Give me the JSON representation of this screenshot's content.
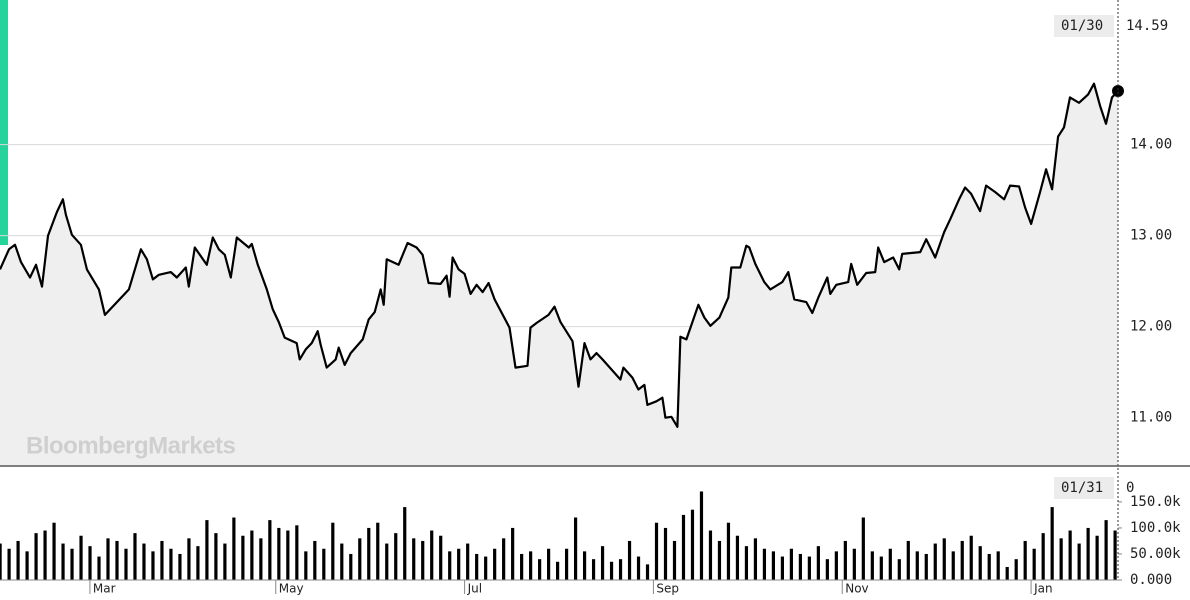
{
  "watermark": "BloombergMarkets",
  "chart_data": [
    {
      "type": "line",
      "color": "#000000",
      "grid": true,
      "xlim": [
        0,
        373
      ],
      "ylim": [
        10.48,
        15.59
      ],
      "yticks": [
        {
          "value": 11,
          "label": "11.00"
        },
        {
          "value": 12,
          "label": "12.00"
        },
        {
          "value": 13,
          "label": "13.00"
        },
        {
          "value": 14,
          "label": "14.00"
        }
      ],
      "last_date": "01/30",
      "last_value": 14.59,
      "x": [
        0,
        3,
        5,
        7,
        10,
        12,
        14,
        16,
        19,
        21,
        22,
        24,
        27,
        29,
        33,
        35,
        43,
        47,
        49,
        51,
        53,
        57,
        59,
        62,
        63,
        65,
        69,
        71,
        73,
        75,
        77,
        79,
        83,
        84,
        86,
        89,
        91,
        93,
        95,
        99,
        100,
        102,
        104,
        106,
        107,
        109,
        112,
        113,
        115,
        117,
        121,
        123,
        125,
        127,
        128,
        129,
        133,
        136,
        139,
        141,
        143,
        147,
        149,
        150,
        151,
        153,
        155,
        157,
        159,
        161,
        163,
        165,
        170,
        172,
        176,
        177,
        179,
        183,
        185,
        187,
        191,
        193,
        195,
        197,
        199,
        201,
        204,
        207,
        208,
        211,
        213,
        215,
        216,
        219,
        221,
        222,
        224,
        226,
        227,
        229,
        233,
        235,
        237,
        240,
        243,
        244,
        247,
        249,
        250,
        252,
        255,
        257,
        261,
        263,
        265,
        269,
        271,
        273,
        276,
        277,
        279,
        283,
        284,
        286,
        289,
        292,
        293,
        295,
        298,
        300,
        301,
        307,
        309,
        312,
        315,
        317,
        320,
        322,
        324,
        327,
        329,
        332,
        335,
        337,
        340,
        342,
        344,
        347,
        349,
        351,
        353,
        355,
        357,
        360,
        363,
        365,
        367,
        369,
        371,
        373
      ],
      "values": [
        12.63,
        12.85,
        12.9,
        12.71,
        12.54,
        12.68,
        12.44,
        13.0,
        13.26,
        13.4,
        13.23,
        13.01,
        12.9,
        12.63,
        12.41,
        12.13,
        12.41,
        12.85,
        12.74,
        12.52,
        12.57,
        12.6,
        12.54,
        12.65,
        12.44,
        12.87,
        12.68,
        12.98,
        12.85,
        12.79,
        12.54,
        12.98,
        12.87,
        12.91,
        12.68,
        12.41,
        12.19,
        12.05,
        11.88,
        11.82,
        11.64,
        11.75,
        11.82,
        11.95,
        11.8,
        11.55,
        11.64,
        11.77,
        11.58,
        11.71,
        11.86,
        12.08,
        12.16,
        12.41,
        12.24,
        12.74,
        12.68,
        12.92,
        12.87,
        12.79,
        12.48,
        12.47,
        12.56,
        12.33,
        12.76,
        12.63,
        12.58,
        12.36,
        12.46,
        12.38,
        12.48,
        12.3,
        11.99,
        11.55,
        11.57,
        11.99,
        12.04,
        12.13,
        12.22,
        12.05,
        11.84,
        11.34,
        11.82,
        11.64,
        11.71,
        11.64,
        11.53,
        11.42,
        11.55,
        11.44,
        11.31,
        11.36,
        11.14,
        11.18,
        11.22,
        11.0,
        11.01,
        10.9,
        11.89,
        11.86,
        12.24,
        12.1,
        12.01,
        12.1,
        12.32,
        12.65,
        12.65,
        12.89,
        12.87,
        12.69,
        12.49,
        12.41,
        12.49,
        12.6,
        12.3,
        12.27,
        12.15,
        12.32,
        12.54,
        12.36,
        12.46,
        12.49,
        12.69,
        12.46,
        12.59,
        12.6,
        12.87,
        12.71,
        12.76,
        12.63,
        12.8,
        12.82,
        12.96,
        12.76,
        13.04,
        13.18,
        13.4,
        13.53,
        13.46,
        13.27,
        13.55,
        13.48,
        13.4,
        13.55,
        13.54,
        13.31,
        13.13,
        13.48,
        13.73,
        13.51,
        14.09,
        14.19,
        14.52,
        14.46,
        14.55,
        14.67,
        14.43,
        14.23,
        14.52,
        14.59
      ]
    },
    {
      "type": "bar",
      "color": "#000000",
      "xlim": [
        0,
        373
      ],
      "ylim": [
        0,
        217000
      ],
      "yticks": [
        {
          "value": 0,
          "label": "0.000"
        },
        {
          "value": 50000,
          "label": "50.00k"
        },
        {
          "value": 100000,
          "label": "100.0k"
        },
        {
          "value": 150000,
          "label": "150.0k"
        }
      ],
      "xticks": [
        {
          "value": 30,
          "label": "Mar"
        },
        {
          "value": 92,
          "label": "May"
        },
        {
          "value": 155,
          "label": "Jul"
        },
        {
          "value": 218,
          "label": "Sep"
        },
        {
          "value": 281,
          "label": "Nov"
        },
        {
          "value": 344,
          "label": "Jan"
        }
      ],
      "last_date": "01/31",
      "last_value": 0,
      "x": [
        0,
        3,
        6,
        9,
        12,
        15,
        18,
        21,
        24,
        27,
        30,
        33,
        36,
        39,
        42,
        45,
        48,
        51,
        54,
        57,
        60,
        63,
        66,
        69,
        72,
        75,
        78,
        81,
        84,
        87,
        90,
        93,
        96,
        99,
        102,
        105,
        108,
        111,
        114,
        117,
        120,
        123,
        126,
        129,
        132,
        135,
        138,
        141,
        144,
        147,
        150,
        153,
        156,
        159,
        162,
        165,
        168,
        171,
        174,
        177,
        180,
        183,
        186,
        189,
        192,
        195,
        198,
        201,
        204,
        207,
        210,
        213,
        216,
        219,
        222,
        225,
        228,
        231,
        234,
        237,
        240,
        243,
        246,
        249,
        252,
        255,
        258,
        261,
        264,
        267,
        270,
        273,
        276,
        279,
        282,
        285,
        288,
        291,
        294,
        297,
        300,
        303,
        306,
        309,
        312,
        315,
        318,
        321,
        324,
        327,
        330,
        333,
        336,
        339,
        342,
        345,
        348,
        351,
        354,
        357,
        360,
        363,
        366,
        369,
        372
      ],
      "values": [
        70000,
        60000,
        75000,
        55000,
        90000,
        95000,
        110000,
        70000,
        60000,
        85000,
        65000,
        45000,
        80000,
        75000,
        60000,
        90000,
        70000,
        55000,
        75000,
        60000,
        50000,
        80000,
        65000,
        115000,
        90000,
        70000,
        120000,
        85000,
        95000,
        80000,
        115000,
        100000,
        95000,
        105000,
        55000,
        75000,
        60000,
        110000,
        70000,
        50000,
        80000,
        100000,
        110000,
        70000,
        90000,
        140000,
        80000,
        75000,
        95000,
        85000,
        55000,
        60000,
        70000,
        50000,
        45000,
        60000,
        80000,
        100000,
        50000,
        55000,
        40000,
        60000,
        35000,
        60000,
        120000,
        55000,
        40000,
        65000,
        35000,
        40000,
        75000,
        45000,
        30000,
        110000,
        100000,
        75000,
        125000,
        135000,
        170000,
        95000,
        75000,
        110000,
        85000,
        65000,
        80000,
        60000,
        55000,
        45000,
        60000,
        50000,
        45000,
        65000,
        40000,
        55000,
        75000,
        60000,
        120000,
        55000,
        45000,
        60000,
        40000,
        75000,
        55000,
        50000,
        70000,
        80000,
        55000,
        75000,
        85000,
        65000,
        50000,
        55000,
        25000,
        40000,
        75000,
        60000,
        90000,
        140000,
        80000,
        95000,
        70000,
        100000,
        85000,
        115000,
        95000
      ]
    }
  ]
}
